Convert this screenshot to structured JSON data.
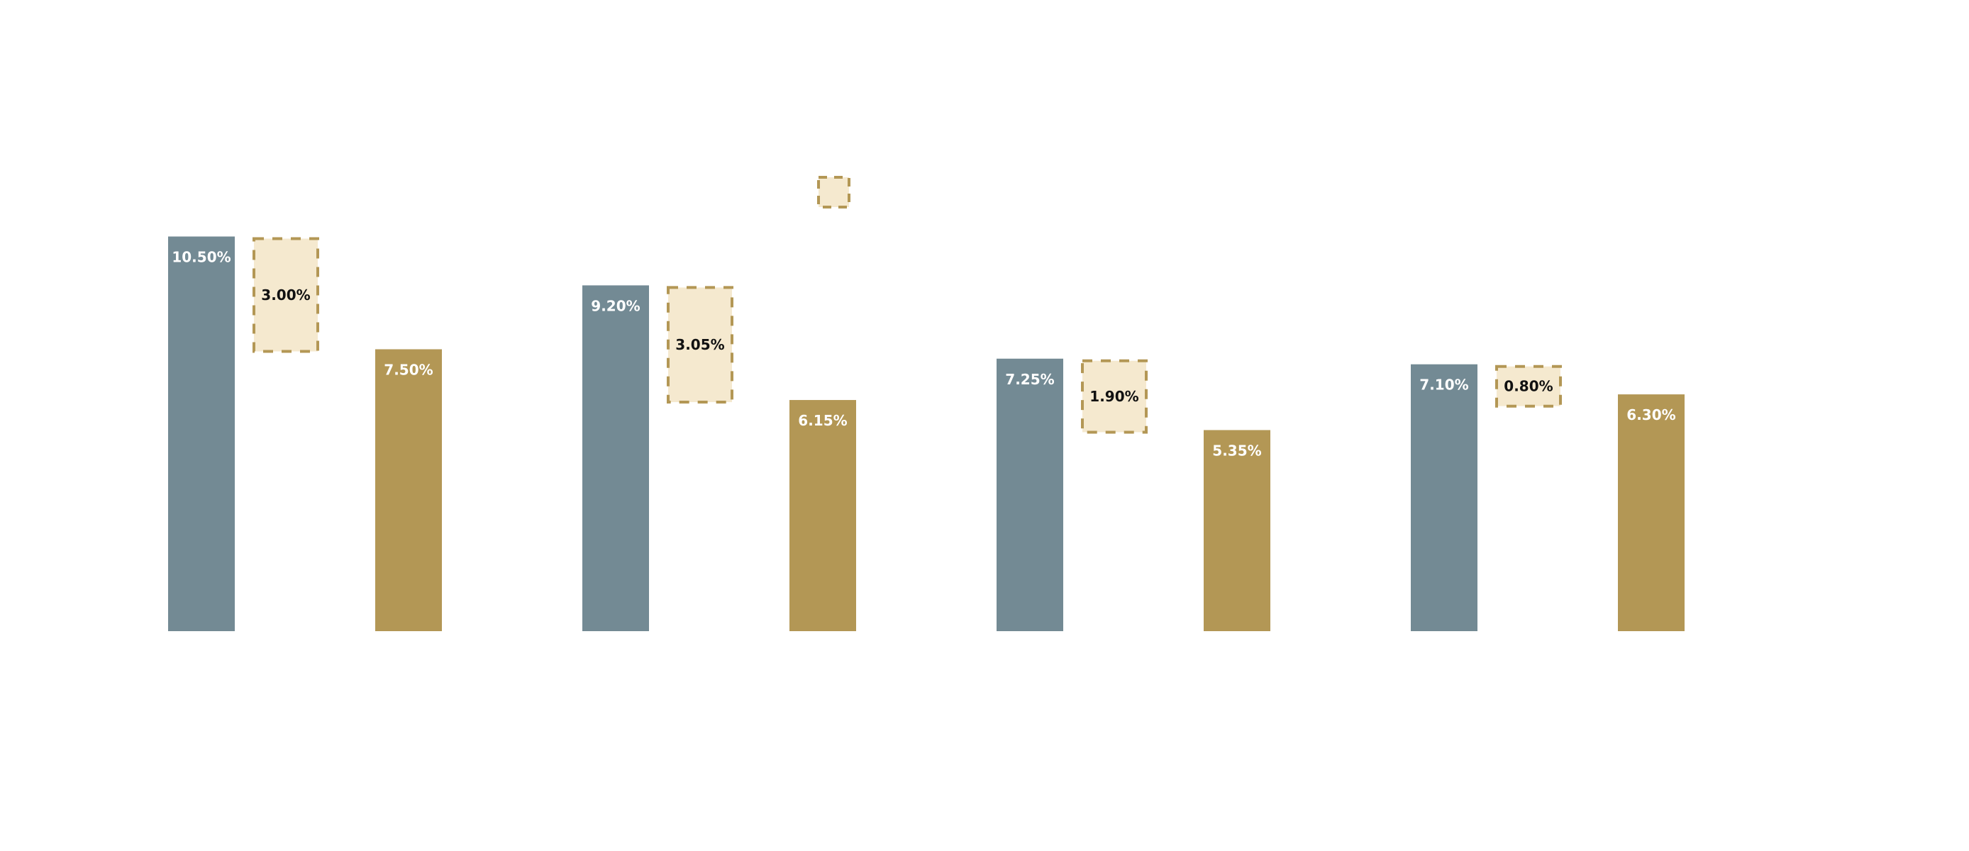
{
  "chart_data": {
    "type": "bar",
    "categories": [
      "",
      "",
      "",
      ""
    ],
    "series": [
      {
        "values": [
          10.5,
          9.2,
          7.25,
          7.1
        ]
      },
      {
        "values": [
          7.5,
          6.15,
          5.35,
          6.3
        ]
      }
    ],
    "differences": [
      3.0,
      3.05,
      1.9,
      0.8
    ],
    "value_labels": {
      "series_a": [
        "10.50%",
        "9.20%",
        "7.25%",
        "7.10%"
      ],
      "series_b": [
        "7.50%",
        "6.15%",
        "5.35%",
        "6.30%"
      ],
      "differences": [
        "3.00%",
        "3.05%",
        "1.90%",
        "0.80%"
      ]
    },
    "legend_marker": "difference-swatch",
    "ylim": [
      0,
      10.5
    ],
    "title": "",
    "xlabel": "",
    "ylabel": "",
    "grid": false,
    "colors": {
      "series_a": "#738a94",
      "series_b": "#b39755",
      "difference_fill": "#f5e9cf",
      "difference_border": "#b39755"
    }
  }
}
